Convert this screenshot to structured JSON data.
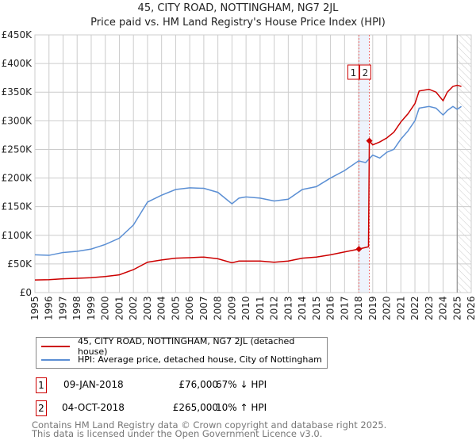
{
  "title": "45, CITY ROAD, NOTTINGHAM, NG7 2JL",
  "subtitle": "Price paid vs. HM Land Registry's House Price Index (HPI)",
  "colors": {
    "property": "#cc0000",
    "hpi": "#5b8fd4"
  },
  "chart_data": {
    "type": "line",
    "xlim": [
      1995,
      2026
    ],
    "ylim": [
      0,
      450000
    ],
    "yticks": [
      0,
      50000,
      100000,
      150000,
      200000,
      250000,
      300000,
      350000,
      400000,
      450000
    ],
    "ytick_labels": [
      "£0",
      "£50K",
      "£100K",
      "£150K",
      "£200K",
      "£250K",
      "£300K",
      "£350K",
      "£400K",
      "£450K"
    ],
    "xticks": [
      1995,
      1996,
      1997,
      1998,
      1999,
      2000,
      2001,
      2002,
      2003,
      2004,
      2005,
      2006,
      2007,
      2008,
      2009,
      2010,
      2011,
      2012,
      2013,
      2014,
      2015,
      2016,
      2017,
      2018,
      2019,
      2020,
      2021,
      2022,
      2023,
      2024,
      2025,
      2026
    ],
    "series": [
      {
        "name": "45, CITY ROAD, NOTTINGHAM, NG7 2JL (detached house)",
        "x": [
          1995,
          1996,
          1997,
          1998,
          1999,
          2000,
          2001,
          2002,
          2003,
          2004,
          2005,
          2006,
          2007,
          2008,
          2009,
          2009.5,
          2010,
          2011,
          2012,
          2013,
          2014,
          2015,
          2016,
          2017,
          2018.02,
          2018.7,
          2018.76,
          2019,
          2019.5,
          2020,
          2020.5,
          2021,
          2021.5,
          2022,
          2022.3,
          2023,
          2023.5,
          2024,
          2024.3,
          2024.7,
          2025,
          2025.3
        ],
        "y": [
          22000,
          22500,
          24000,
          25000,
          26000,
          28000,
          31000,
          40000,
          53000,
          57000,
          60000,
          61000,
          62000,
          59000,
          52000,
          55000,
          55000,
          55000,
          53000,
          55000,
          60000,
          62000,
          66000,
          71000,
          76000,
          80000,
          265000,
          258000,
          263000,
          270000,
          280000,
          298000,
          312000,
          330000,
          352000,
          355000,
          350000,
          335000,
          350000,
          360000,
          362000,
          360000
        ]
      },
      {
        "name": "HPI: Average price, detached house, City of Nottingham",
        "x": [
          1995,
          1996,
          1997,
          1998,
          1999,
          2000,
          2001,
          2002,
          2003,
          2004,
          2005,
          2006,
          2007,
          2008,
          2009,
          2009.5,
          2010,
          2011,
          2012,
          2013,
          2014,
          2015,
          2016,
          2017,
          2018,
          2018.5,
          2019,
          2019.5,
          2020,
          2020.5,
          2021,
          2021.5,
          2022,
          2022.3,
          2023,
          2023.5,
          2024,
          2024.3,
          2024.7,
          2025,
          2025.3
        ],
        "y": [
          66000,
          65000,
          70000,
          72000,
          76000,
          84000,
          95000,
          118000,
          158000,
          170000,
          180000,
          183000,
          182000,
          175000,
          155000,
          165000,
          167000,
          165000,
          160000,
          163000,
          180000,
          185000,
          200000,
          213000,
          230000,
          227000,
          240000,
          235000,
          245000,
          250000,
          268000,
          282000,
          300000,
          322000,
          325000,
          322000,
          310000,
          318000,
          325000,
          320000,
          325000
        ]
      }
    ],
    "sales": [
      {
        "label": "1",
        "x": 2018.02,
        "y": 76000
      },
      {
        "label": "2",
        "x": 2018.76,
        "y": 265000
      }
    ],
    "forecast_from": 2025.0
  },
  "legend": {
    "property": "45, CITY ROAD, NOTTINGHAM, NG7 2JL (detached house)",
    "hpi": "HPI: Average price, detached house, City of Nottingham"
  },
  "sales_table": [
    {
      "num": "1",
      "date": "09-JAN-2018",
      "price": "£76,000",
      "hpi": "67% ↓ HPI"
    },
    {
      "num": "2",
      "date": "04-OCT-2018",
      "price": "£265,000",
      "hpi": "10% ↑ HPI"
    }
  ],
  "footer": [
    "Contains HM Land Registry data © Crown copyright and database right 2025.",
    "This data is licensed under the Open Government Licence v3.0."
  ]
}
